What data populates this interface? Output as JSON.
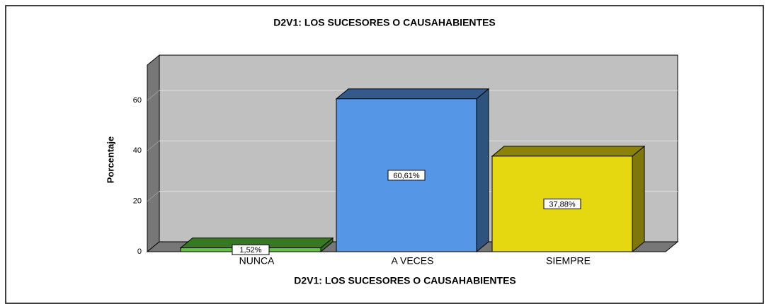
{
  "chart_data": {
    "type": "bar3d",
    "title": "D2V1: LOS SUCESORES O CAUSAHABIENTES",
    "y_label": "Porcentaje",
    "x_label": "D2V1: LOS SUCESORES O CAUSAHABIENTES",
    "categories": [
      "NUNCA",
      "A VECES",
      "SIEMPRE"
    ],
    "values": [
      1.52,
      60.61,
      37.88
    ],
    "value_labels": [
      "1,52%",
      "60,61%",
      "37,88%"
    ],
    "colors": [
      "#5ec83a",
      "#5596e6",
      "#e6d810"
    ],
    "ylim": [
      0,
      74
    ],
    "yticks": [
      0,
      20,
      40,
      60
    ],
    "grid": true
  }
}
